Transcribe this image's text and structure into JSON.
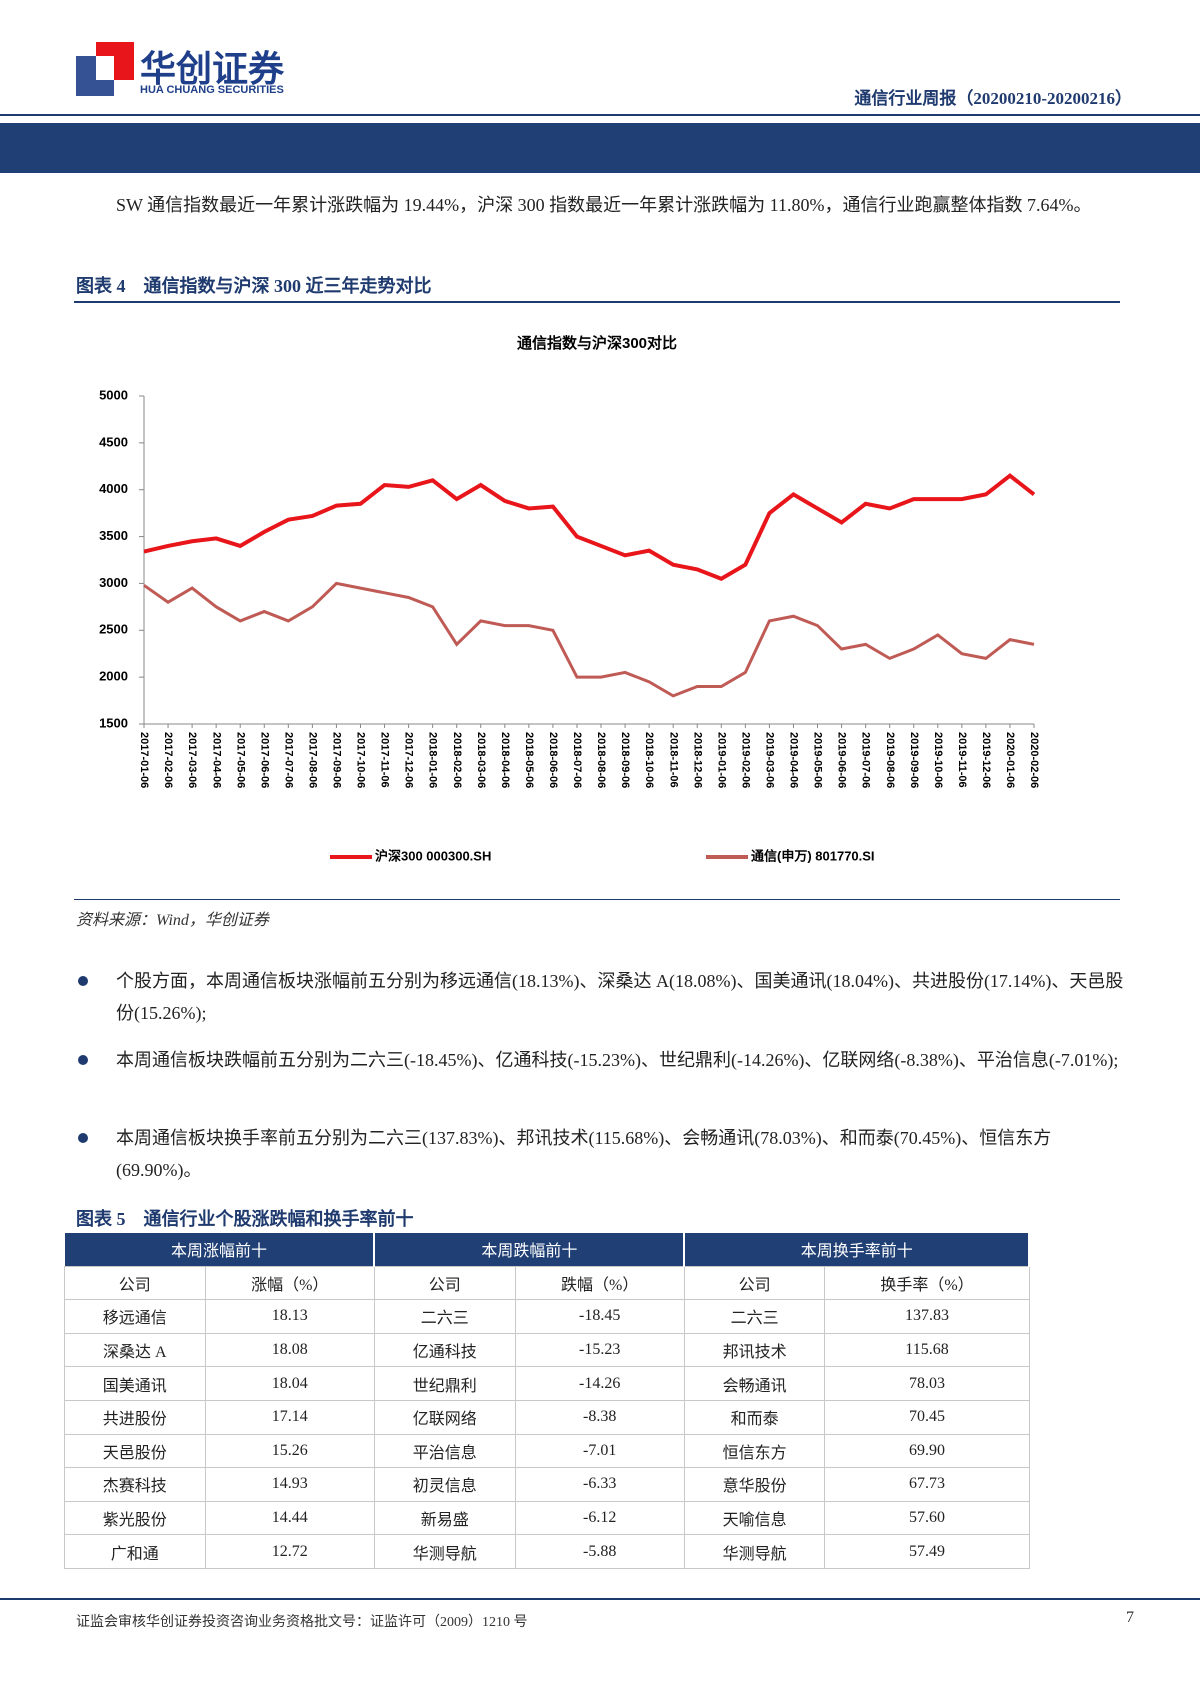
{
  "header": {
    "company": "华创证券",
    "company_en": "HUA CHUANG SECURITIES",
    "report": "通信行业周报（20200210-20200216）"
  },
  "intro": "SW 通信指数最近一年累计涨跌幅为 19.44%，沪深 300 指数最近一年累计涨跌幅为 11.80%，通信行业跑赢整体指数 7.64%。",
  "figure4": {
    "caption": "图表 4　通信指数与沪深 300 近三年走势对比",
    "source": "资料来源：Wind，华创证券"
  },
  "chart_data": {
    "type": "line",
    "title": "通信指数与沪深300对比",
    "categories": [
      "2017-01-06",
      "2017-02-06",
      "2017-03-06",
      "2017-04-06",
      "2017-05-06",
      "2017-06-06",
      "2017-07-06",
      "2017-08-06",
      "2017-09-06",
      "2017-10-06",
      "2017-11-06",
      "2017-12-06",
      "2018-01-06",
      "2018-02-06",
      "2018-03-06",
      "2018-04-06",
      "2018-05-06",
      "2018-06-06",
      "2018-07-06",
      "2018-08-06",
      "2018-09-06",
      "2018-10-06",
      "2018-11-06",
      "2018-12-06",
      "2019-01-06",
      "2019-02-06",
      "2019-03-06",
      "2019-04-06",
      "2019-05-06",
      "2019-06-06",
      "2019-07-06",
      "2019-08-06",
      "2019-09-06",
      "2019-10-06",
      "2019-11-06",
      "2019-12-06",
      "2020-01-06",
      "2020-02-06"
    ],
    "series": [
      {
        "name": "沪深300 000300.SH",
        "color": "#e8161b",
        "values": [
          3340,
          3400,
          3450,
          3480,
          3400,
          3550,
          3680,
          3720,
          3830,
          3850,
          4050,
          4030,
          4100,
          3900,
          4050,
          3880,
          3800,
          3820,
          3500,
          3400,
          3300,
          3350,
          3200,
          3150,
          3050,
          3200,
          3750,
          3950,
          3800,
          3650,
          3850,
          3800,
          3900,
          3900,
          3900,
          3950,
          4150,
          3950
        ]
      },
      {
        "name": "通信(申万) 801770.SI",
        "color": "#bf5a55",
        "values": [
          2980,
          2800,
          2950,
          2750,
          2600,
          2700,
          2600,
          2750,
          3000,
          2950,
          2900,
          2850,
          2750,
          2350,
          2600,
          2550,
          2550,
          2500,
          2000,
          2000,
          2050,
          1950,
          1800,
          1900,
          1900,
          2050,
          2600,
          2650,
          2550,
          2300,
          2350,
          2200,
          2300,
          2450,
          2250,
          2200,
          2400,
          2350
        ]
      }
    ],
    "ylim": [
      1500,
      5000
    ],
    "yticks": [
      1500,
      2000,
      2500,
      3000,
      3500,
      4000,
      4500,
      5000
    ],
    "grid": false,
    "legend": "bottom"
  },
  "bullets": [
    "个股方面，本周通信板块涨幅前五分别为移远通信(18.13%)、深桑达 A(18.08%)、国美通讯(18.04%)、共进股份(17.14%)、天邑股份(15.26%);",
    "本周通信板块跌幅前五分别为二六三(-18.45%)、亿通科技(-15.23%)、世纪鼎利(-14.26%)、亿联网络(-8.38%)、平治信息(-7.01%);",
    "本周通信板块换手率前五分别为二六三(137.83%)、邦讯技术(115.68%)、会畅通讯(78.03%)、和而泰(70.45%)、恒信东方(69.90%)。"
  ],
  "figure5": {
    "caption": "图表 5　通信行业个股涨跌幅和换手率前十"
  },
  "table": {
    "groups": [
      "本周涨幅前十",
      "本周跌幅前十",
      "本周换手率前十"
    ],
    "columns": [
      "公司",
      "涨幅（%）",
      "公司",
      "跌幅（%）",
      "公司",
      "换手率（%）"
    ],
    "rows": [
      [
        "移远通信",
        "18.13",
        "二六三",
        "-18.45",
        "二六三",
        "137.83"
      ],
      [
        "深桑达 A",
        "18.08",
        "亿通科技",
        "-15.23",
        "邦讯技术",
        "115.68"
      ],
      [
        "国美通讯",
        "18.04",
        "世纪鼎利",
        "-14.26",
        "会畅通讯",
        "78.03"
      ],
      [
        "共进股份",
        "17.14",
        "亿联网络",
        "-8.38",
        "和而泰",
        "70.45"
      ],
      [
        "天邑股份",
        "15.26",
        "平治信息",
        "-7.01",
        "恒信东方",
        "69.90"
      ],
      [
        "杰赛科技",
        "14.93",
        "初灵信息",
        "-6.33",
        "意华股份",
        "67.73"
      ],
      [
        "紫光股份",
        "14.44",
        "新易盛",
        "-6.12",
        "天喻信息",
        "57.60"
      ],
      [
        "广和通",
        "12.72",
        "华测导航",
        "-5.88",
        "华测导航",
        "57.49"
      ]
    ]
  },
  "footer": {
    "text": "证监会审核华创证券投资咨询业务资格批文号：证监许可（2009）1210 号",
    "page": 7
  }
}
